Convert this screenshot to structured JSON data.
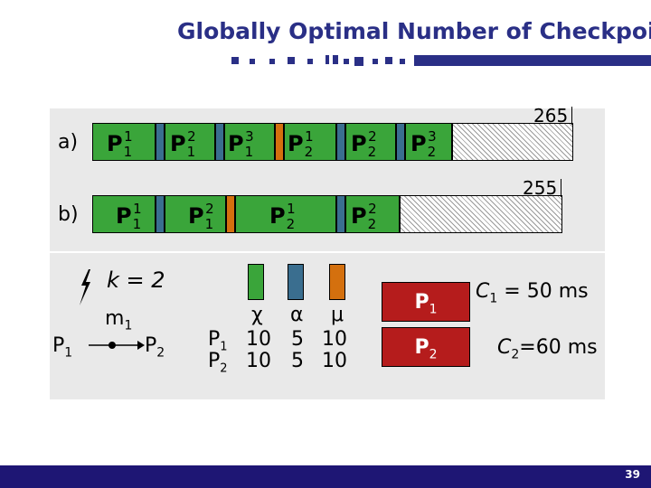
{
  "title": "Globally Optimal Number of Checkpoi",
  "row_a": {
    "label": "a)",
    "segments": [
      {
        "base": "P",
        "sub": "1",
        "sup": "1"
      },
      {
        "base": "P",
        "sub": "1",
        "sup": "2"
      },
      {
        "base": "P",
        "sub": "1",
        "sup": "3"
      },
      {
        "base": "P",
        "sub": "2",
        "sup": "1"
      },
      {
        "base": "P",
        "sub": "2",
        "sup": "2"
      },
      {
        "base": "P",
        "sub": "2",
        "sup": "3"
      }
    ],
    "end_value": "265"
  },
  "row_b": {
    "label": "b)",
    "segments": [
      {
        "base": "P",
        "sub": "1",
        "sup": "1"
      },
      {
        "base": "P",
        "sub": "1",
        "sup": "2"
      },
      {
        "base": "P",
        "sub": "2",
        "sup": "1"
      },
      {
        "base": "P",
        "sub": "2",
        "sup": "2"
      }
    ],
    "end_value": "255"
  },
  "k_label": "k = 2",
  "graph": {
    "message": "m",
    "message_sub": "1",
    "node_a": "P",
    "node_a_sub": "1",
    "node_b": "P",
    "node_b_sub": "2"
  },
  "table": {
    "headers": [
      "χ",
      "α",
      "μ"
    ],
    "rows": [
      {
        "proc": "P",
        "sub": "1",
        "values": [
          "10",
          "5",
          "10"
        ]
      },
      {
        "proc": "P",
        "sub": "2",
        "values": [
          "10",
          "5",
          "10"
        ]
      }
    ]
  },
  "legend": [
    {
      "proc": "P",
      "sub": "1",
      "cost_label": "C",
      "cost_sub": "1",
      "cost_value": " = 50 ms"
    },
    {
      "proc": "P",
      "sub": "2",
      "cost_label": "C",
      "cost_sub": "2",
      "cost_value": "=60 ms"
    }
  ],
  "page_number": "39",
  "colors": {
    "accent": "#2a2f86",
    "green": "#3aa53a",
    "blue": "#3a6e8f",
    "orange": "#d4700e",
    "red": "#b51c1c",
    "footer": "#1e1674"
  }
}
